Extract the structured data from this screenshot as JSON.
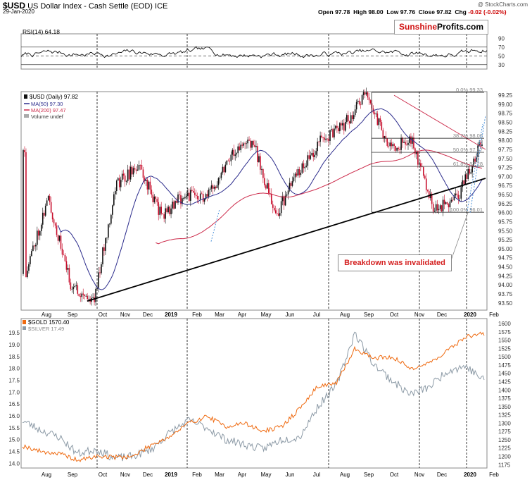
{
  "header": {
    "symbol": "$USD",
    "name": "US Dollar Index - Cash Settle (EOD) ICE",
    "date": "29-Jan-2020",
    "open_label": "Open",
    "open": "97.78",
    "high_label": "High",
    "high": "98.00",
    "low_label": "Low",
    "low": "97.76",
    "close_label": "Close",
    "close": "97.82",
    "chg_label": "Chg",
    "chg": "-0.02 (-0.02%)",
    "source": "@ StockCharts.com"
  },
  "watermark": {
    "part1": "Sunshine",
    "part2": "Profits.com"
  },
  "annotation": "Breakdown was invalidated",
  "colors": {
    "up": "#111111",
    "down": "#c8102e",
    "ma50": "#2c2c8c",
    "ma200": "#cc2a4a",
    "gold": "#ef6a10",
    "silver": "#8c9aa6",
    "fib": "#4a90d9"
  },
  "chart_data": [
    {
      "type": "line",
      "title": "RSI(14) 64.18",
      "series": [
        {
          "name": "RSI(14)",
          "last": 64.18
        }
      ],
      "yticks": [
        90,
        70,
        50,
        30
      ],
      "ylim": [
        20,
        100
      ],
      "reference_lines": [
        70,
        50,
        30
      ]
    },
    {
      "type": "candlestick",
      "title": "$USD (Daily) 97.82",
      "legend": [
        "$USD (Daily) 97.82",
        "MA(50) 97.30",
        "MA(200) 97.47",
        "Volume undef"
      ],
      "x_ticks": [
        "Aug",
        "Sep",
        "Oct",
        "Nov",
        "Dec",
        "2019",
        "Feb",
        "Mar",
        "Apr",
        "May",
        "Jun",
        "Jul",
        "Aug",
        "Sep",
        "Oct",
        "Nov",
        "Dec",
        "2020",
        "Feb"
      ],
      "ylim": [
        93.3,
        99.35
      ],
      "yticks": [
        99.25,
        99.0,
        98.75,
        98.5,
        98.25,
        98.0,
        97.75,
        97.5,
        97.25,
        97.0,
        96.75,
        96.5,
        96.25,
        96.0,
        95.75,
        95.5,
        95.25,
        95.0,
        94.75,
        94.5,
        94.25,
        94.0,
        93.75,
        93.5
      ],
      "fib_levels": [
        {
          "label": "0.0% 99.33",
          "value": 99.33
        },
        {
          "label": "38.2% 98.06",
          "value": 98.06
        },
        {
          "label": "50.0% 97.67",
          "value": 97.67
        },
        {
          "label": "61.8% 97.28",
          "value": 97.28
        },
        {
          "label": "100.0% 96.01",
          "value": 96.01
        }
      ],
      "key_points": [
        {
          "date": "2018-07",
          "value": 94.3
        },
        {
          "date": "2018-08",
          "value": 96.4
        },
        {
          "date": "2018-09",
          "value": 94.0
        },
        {
          "date": "2018-10",
          "value": 93.55
        },
        {
          "date": "2018-11",
          "value": 96.8
        },
        {
          "date": "2018-12",
          "value": 97.3
        },
        {
          "date": "2019-01",
          "value": 95.9
        },
        {
          "date": "2019-02",
          "value": 96.5
        },
        {
          "date": "2019-03",
          "value": 96.4
        },
        {
          "date": "2019-04",
          "value": 97.6
        },
        {
          "date": "2019-05",
          "value": 98.0
        },
        {
          "date": "2019-06",
          "value": 95.9
        },
        {
          "date": "2019-07",
          "value": 97.1
        },
        {
          "date": "2019-08",
          "value": 98.0
        },
        {
          "date": "2019-09",
          "value": 98.4
        },
        {
          "date": "2019-10",
          "value": 99.3
        },
        {
          "date": "2019-11",
          "value": 97.8
        },
        {
          "date": "2019-12",
          "value": 98.0
        },
        {
          "date": "2019-12-31",
          "value": 96.1
        },
        {
          "date": "2020-01",
          "value": 96.4
        },
        {
          "date": "2020-01-29",
          "value": 97.82
        }
      ]
    },
    {
      "type": "line",
      "title": "$GOLD 1570.40 / $SILVER 17.49",
      "legend": [
        "$GOLD 1570.40",
        "$SILVER 17.49"
      ],
      "x_ticks": [
        "Aug",
        "Sep",
        "Oct",
        "Nov",
        "Dec",
        "2019",
        "Feb",
        "Mar",
        "Apr",
        "May",
        "Jun",
        "Jul",
        "Aug",
        "Sep",
        "Oct",
        "Nov",
        "Dec",
        "2020",
        "Feb"
      ],
      "left_axis": {
        "name": "SILVER",
        "ylim": [
          13.8,
          20.1
        ],
        "ticks": [
          19.5,
          19.0,
          18.5,
          18.0,
          17.5,
          17.0,
          16.5,
          16.0,
          15.5,
          15.0,
          14.5,
          14.0
        ]
      },
      "right_axis": {
        "name": "GOLD",
        "ylim": [
          1165,
          1615
        ],
        "ticks": [
          1600,
          1575,
          1550,
          1525,
          1500,
          1475,
          1450,
          1425,
          1400,
          1375,
          1350,
          1325,
          1300,
          1275,
          1250,
          1225,
          1200,
          1175
        ]
      },
      "series": [
        {
          "name": "$GOLD",
          "axis": "right",
          "points": [
            [
              0,
              1232
            ],
            [
              1,
              1215
            ],
            [
              2,
              1208
            ],
            [
              3,
              1188
            ],
            [
              4,
              1200
            ],
            [
              5,
              1198
            ],
            [
              6,
              1200
            ],
            [
              7,
              1236
            ],
            [
              8,
              1260
            ],
            [
              9,
              1300
            ],
            [
              10,
              1321
            ],
            [
              11,
              1290
            ],
            [
              12,
              1300
            ],
            [
              13,
              1276
            ],
            [
              14,
              1288
            ],
            [
              15,
              1343
            ],
            [
              16,
              1412
            ],
            [
              17,
              1420
            ],
            [
              18,
              1525
            ],
            [
              19,
              1496
            ],
            [
              20,
              1500
            ],
            [
              21,
              1465
            ],
            [
              22,
              1480
            ],
            [
              23,
              1518
            ],
            [
              24,
              1560
            ],
            [
              25,
              1570.4
            ]
          ]
        },
        {
          "name": "$SILVER",
          "axis": "left",
          "points": [
            [
              0,
              15.8
            ],
            [
              1,
              15.4
            ],
            [
              2,
              15.1
            ],
            [
              3,
              14.4
            ],
            [
              4,
              14.6
            ],
            [
              5,
              14.2
            ],
            [
              6,
              14.3
            ],
            [
              7,
              14.6
            ],
            [
              8,
              15.3
            ],
            [
              9,
              15.8
            ],
            [
              10,
              15.5
            ],
            [
              11,
              15.0
            ],
            [
              12,
              14.8
            ],
            [
              13,
              14.6
            ],
            [
              14,
              15.0
            ],
            [
              15,
              15.1
            ],
            [
              16,
              16.4
            ],
            [
              17,
              17.3
            ],
            [
              18,
              19.5
            ],
            [
              19,
              18.2
            ],
            [
              20,
              17.5
            ],
            [
              21,
              16.9
            ],
            [
              22,
              17.2
            ],
            [
              23,
              17.9
            ],
            [
              24,
              18.1
            ],
            [
              25,
              17.49
            ]
          ]
        }
      ]
    }
  ]
}
